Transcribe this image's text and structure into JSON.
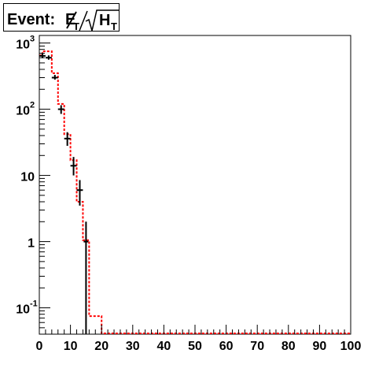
{
  "title": {
    "prefix": "Event: ",
    "numerator": "E",
    "numerator_sub": "T",
    "denominator": "H",
    "denominator_sub": "T"
  },
  "chart_data": {
    "type": "histogram",
    "title": "Event: E̸T/√HT",
    "xlabel": "",
    "ylabel": "",
    "xlim": [
      0,
      100
    ],
    "ylim": [
      0.04,
      1300
    ],
    "yscale": "log",
    "grid": false,
    "x_ticks": [
      "0",
      "10",
      "20",
      "30",
      "40",
      "50",
      "60",
      "70",
      "80",
      "90",
      "100"
    ],
    "y_ticks": [
      {
        "value": 1000,
        "base": "10",
        "exp": "3"
      },
      {
        "value": 100,
        "base": "10",
        "exp": "2"
      },
      {
        "value": 10,
        "base": "10",
        "exp": ""
      },
      {
        "value": 1,
        "base": "1",
        "exp": ""
      },
      {
        "value": 0.1,
        "base": "10",
        "exp": "-1"
      }
    ],
    "series": [
      {
        "kind": "step",
        "color": "#ff0000",
        "style": "dashed",
        "bins": [
          {
            "x0": 0,
            "x1": 1,
            "y": 650
          },
          {
            "x0": 1,
            "x1": 4,
            "y": 750
          },
          {
            "x0": 4,
            "x1": 6,
            "y": 350
          },
          {
            "x0": 6,
            "x1": 8,
            "y": 120
          },
          {
            "x0": 8,
            "x1": 10,
            "y": 42
          },
          {
            "x0": 10,
            "x1": 12,
            "y": 17
          },
          {
            "x0": 12,
            "x1": 14,
            "y": 4
          },
          {
            "x0": 14,
            "x1": 16,
            "y": 1.05
          },
          {
            "x0": 16,
            "x1": 20,
            "y": 0.075
          }
        ]
      },
      {
        "kind": "points",
        "color": "#000000",
        "points": [
          {
            "x": 1,
            "y": 640,
            "xerr": 1,
            "ylo": 590,
            "yhi": 690
          },
          {
            "x": 3,
            "y": 600,
            "xerr": 1,
            "ylo": 560,
            "yhi": 650
          },
          {
            "x": 5,
            "y": 300,
            "xerr": 1,
            "ylo": 280,
            "yhi": 330
          },
          {
            "x": 7,
            "y": 100,
            "xerr": 1,
            "ylo": 85,
            "yhi": 115
          },
          {
            "x": 9,
            "y": 36,
            "xerr": 1,
            "ylo": 28,
            "yhi": 45
          },
          {
            "x": 11,
            "y": 14,
            "xerr": 1,
            "ylo": 10,
            "yhi": 19
          },
          {
            "x": 13,
            "y": 6,
            "xerr": 1,
            "ylo": 3.5,
            "yhi": 8.5
          },
          {
            "x": 15,
            "y": 1,
            "xerr": 0,
            "ylo": 0.04,
            "yhi": 2
          }
        ]
      }
    ]
  }
}
